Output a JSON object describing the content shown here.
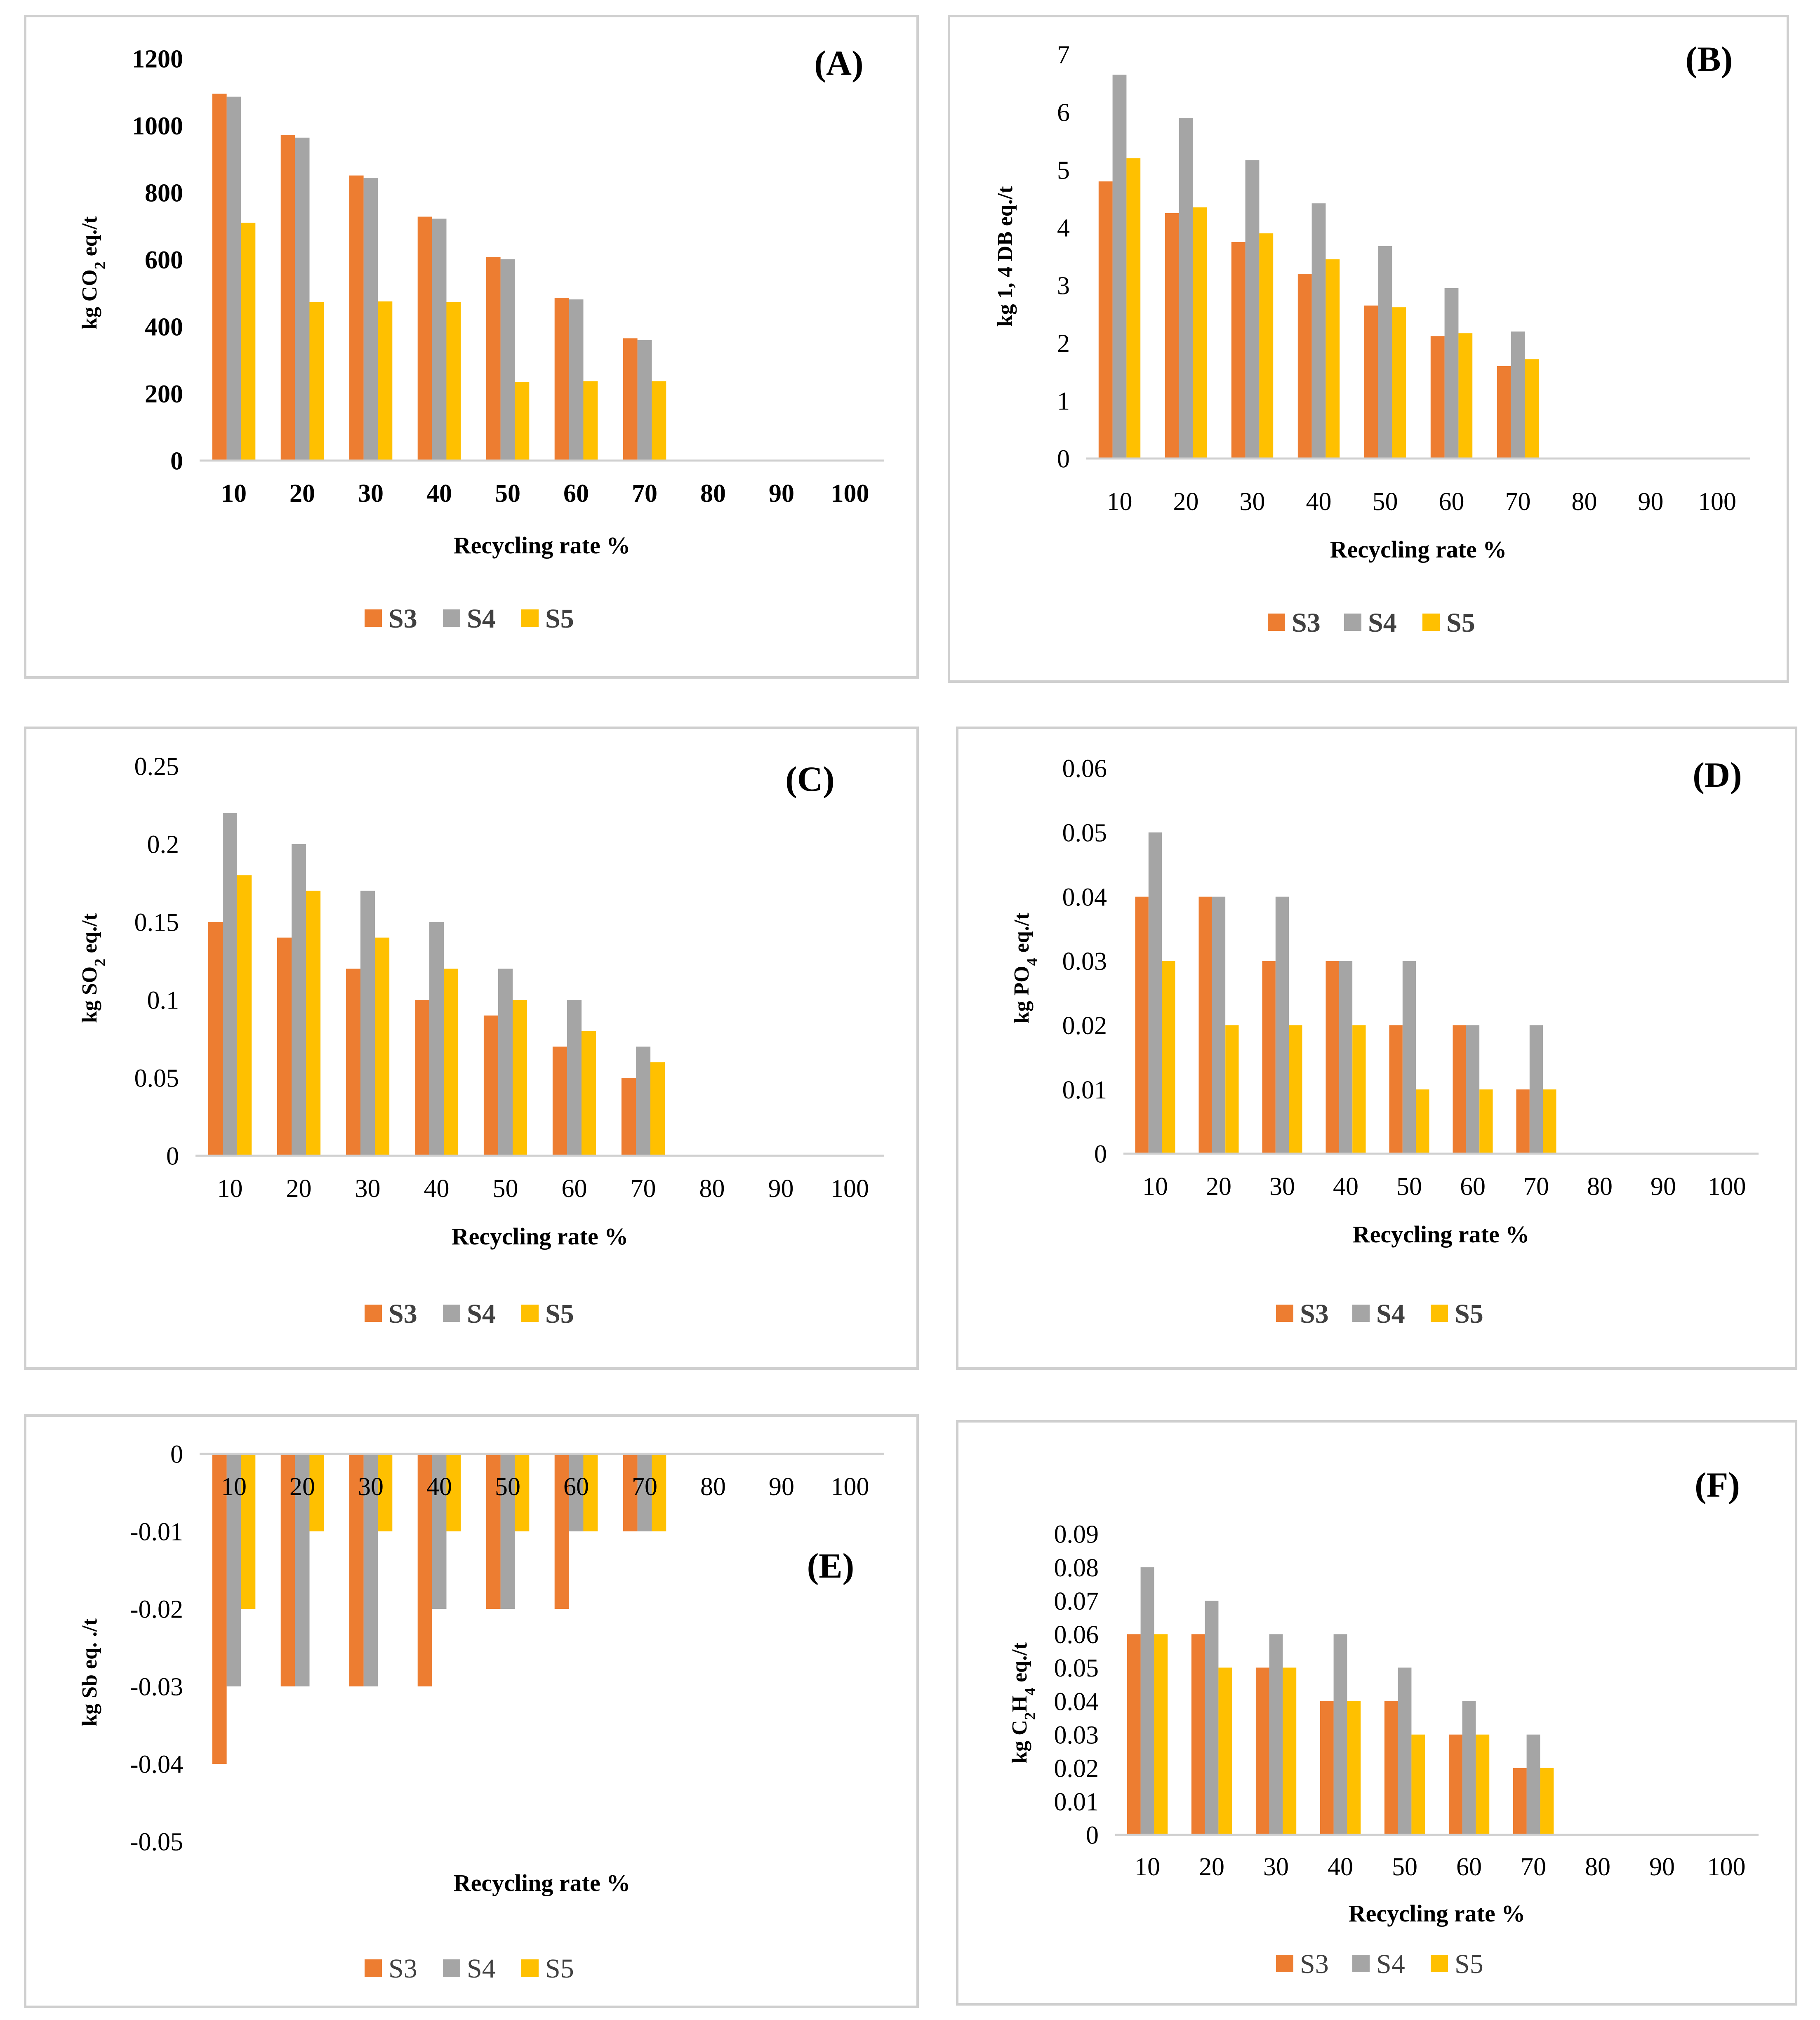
{
  "colors": {
    "S3": "#ED7D31",
    "S4": "#A5A5A5",
    "S5": "#FFC000",
    "axis": "#d0d0d0",
    "text": "#000000"
  },
  "chart_data": [
    {
      "id": "A",
      "type": "bar",
      "title": "(A)",
      "xlabel": "Recycling rate %",
      "ylabel": "kg CO2 eq./t",
      "ylabel_parts": [
        {
          "t": "kg CO"
        },
        {
          "t": "2",
          "sub": true
        },
        {
          "t": " eq./t"
        }
      ],
      "categories": [
        "10",
        "20",
        "30",
        "40",
        "50",
        "60",
        "70",
        "80",
        "90",
        "100"
      ],
      "ylim": [
        0,
        1200
      ],
      "yticks": [
        "0",
        "200",
        "400",
        "600",
        "800",
        "1000",
        "1200"
      ],
      "series": [
        {
          "name": "S3",
          "values": [
            1095,
            972,
            851,
            728,
            607,
            486,
            365,
            0,
            0,
            0
          ]
        },
        {
          "name": "S4",
          "values": [
            1086,
            964,
            843,
            722,
            601,
            481,
            360,
            0,
            0,
            0
          ]
        },
        {
          "name": "S5",
          "values": [
            710,
            473,
            475,
            473,
            235,
            237,
            237,
            0,
            0,
            0
          ]
        }
      ],
      "legend": [
        "S3",
        "S4",
        "S5"
      ],
      "style": {
        "tickBold": true,
        "legendBold": true
      }
    },
    {
      "id": "B",
      "type": "bar",
      "title": "(B)",
      "xlabel": "Recycling rate %",
      "ylabel": "kg 1, 4 DB eq./t",
      "ylabel_parts": [
        {
          "t": "kg 1, 4 DB eq./t"
        }
      ],
      "categories": [
        "10",
        "20",
        "30",
        "40",
        "50",
        "60",
        "70",
        "80",
        "90",
        "100"
      ],
      "ylim": [
        0,
        7
      ],
      "yticks": [
        "0",
        "1",
        "2",
        "3",
        "4",
        "5",
        "6",
        "7"
      ],
      "series": [
        {
          "name": "S3",
          "values": [
            4.8,
            4.25,
            3.75,
            3.2,
            2.65,
            2.12,
            1.6,
            0,
            0,
            0
          ]
        },
        {
          "name": "S4",
          "values": [
            6.65,
            5.9,
            5.17,
            4.42,
            3.68,
            2.95,
            2.2,
            0,
            0,
            0
          ]
        },
        {
          "name": "S5",
          "values": [
            5.2,
            4.35,
            3.9,
            3.45,
            2.62,
            2.17,
            1.72,
            0,
            0,
            0
          ]
        }
      ],
      "legend": [
        "S3",
        "S4",
        "S5"
      ],
      "style": {
        "tickBold": false,
        "legendBold": true
      }
    },
    {
      "id": "C",
      "type": "bar",
      "title": "(C)",
      "xlabel": "Recycling rate %",
      "ylabel": "kg SO2 eq./t",
      "ylabel_parts": [
        {
          "t": "kg SO"
        },
        {
          "t": "2",
          "sub": true
        },
        {
          "t": " eq./t"
        }
      ],
      "categories": [
        "10",
        "20",
        "30",
        "40",
        "50",
        "60",
        "70",
        "80",
        "90",
        "100"
      ],
      "ylim": [
        0,
        0.25
      ],
      "yticks": [
        "0",
        "0.05",
        "0.1",
        "0.15",
        "0.2",
        "0.25"
      ],
      "series": [
        {
          "name": "S3",
          "values": [
            0.15,
            0.14,
            0.12,
            0.1,
            0.09,
            0.07,
            0.05,
            0,
            0,
            0
          ]
        },
        {
          "name": "S4",
          "values": [
            0.22,
            0.2,
            0.17,
            0.15,
            0.12,
            0.1,
            0.07,
            0,
            0,
            0
          ]
        },
        {
          "name": "S5",
          "values": [
            0.18,
            0.17,
            0.14,
            0.12,
            0.1,
            0.08,
            0.06,
            0,
            0,
            0
          ]
        }
      ],
      "legend": [
        "S3",
        "S4",
        "S5"
      ],
      "style": {
        "tickBold": false,
        "legendBold": true
      }
    },
    {
      "id": "D",
      "type": "bar",
      "title": "(D)",
      "xlabel": "Recycling rate %",
      "ylabel": "kg PO4 eq./t",
      "ylabel_parts": [
        {
          "t": "kg PO"
        },
        {
          "t": "4",
          "sub": true
        },
        {
          "t": " eq./t"
        }
      ],
      "categories": [
        "10",
        "20",
        "30",
        "40",
        "50",
        "60",
        "70",
        "80",
        "90",
        "100"
      ],
      "ylim": [
        0,
        0.06
      ],
      "yticks": [
        "0",
        "0.01",
        "0.02",
        "0.03",
        "0.04",
        "0.05",
        "0.06"
      ],
      "series": [
        {
          "name": "S3",
          "values": [
            0.04,
            0.04,
            0.03,
            0.03,
            0.02,
            0.02,
            0.01,
            0,
            0,
            0
          ]
        },
        {
          "name": "S4",
          "values": [
            0.05,
            0.04,
            0.04,
            0.03,
            0.03,
            0.02,
            0.02,
            0,
            0,
            0
          ]
        },
        {
          "name": "S5",
          "values": [
            0.03,
            0.02,
            0.02,
            0.02,
            0.01,
            0.01,
            0.01,
            0,
            0,
            0
          ]
        }
      ],
      "legend": [
        "S3",
        "S4",
        "S5"
      ],
      "style": {
        "tickBold": false,
        "legendBold": true
      }
    },
    {
      "id": "E",
      "type": "bar",
      "title": "(E)",
      "xlabel": "Recycling rate %",
      "ylabel": "kg Sb eq. ./t",
      "ylabel_parts": [
        {
          "t": "kg Sb eq. ./t"
        }
      ],
      "categories": [
        "10",
        "20",
        "30",
        "40",
        "50",
        "60",
        "70",
        "80",
        "90",
        "100"
      ],
      "ylim": [
        -0.05,
        0
      ],
      "yticks": [
        "-0.05",
        "-0.04",
        "-0.03",
        "-0.02",
        "-0.01",
        "0"
      ],
      "series": [
        {
          "name": "S3",
          "values": [
            -0.04,
            -0.03,
            -0.03,
            -0.03,
            -0.02,
            -0.02,
            -0.01,
            0,
            0,
            0
          ]
        },
        {
          "name": "S4",
          "values": [
            -0.03,
            -0.03,
            -0.03,
            -0.02,
            -0.02,
            -0.01,
            -0.01,
            0,
            0,
            0
          ]
        },
        {
          "name": "S5",
          "values": [
            -0.02,
            -0.01,
            -0.01,
            -0.01,
            -0.01,
            -0.01,
            -0.01,
            0,
            0,
            0
          ]
        }
      ],
      "legend": [
        "S3",
        "S4",
        "S5"
      ],
      "style": {
        "tickBold": false,
        "legendBold": false
      }
    },
    {
      "id": "F",
      "type": "bar",
      "title": "(F)",
      "xlabel": "Recycling rate %",
      "ylabel": "kg C2H4 eq./t",
      "ylabel_parts": [
        {
          "t": "kg C"
        },
        {
          "t": "2",
          "sub": true
        },
        {
          "t": "H"
        },
        {
          "t": "4",
          "sub": true
        },
        {
          "t": "  eq./t"
        }
      ],
      "categories": [
        "10",
        "20",
        "30",
        "40",
        "50",
        "60",
        "70",
        "80",
        "90",
        "100"
      ],
      "ylim": [
        0,
        0.09
      ],
      "yticks": [
        "0",
        "0.01",
        "0.02",
        "0.03",
        "0.04",
        "0.05",
        "0.06",
        "0.07",
        "0.08",
        "0.09"
      ],
      "series": [
        {
          "name": "S3",
          "values": [
            0.06,
            0.06,
            0.05,
            0.04,
            0.04,
            0.03,
            0.02,
            0,
            0,
            0
          ]
        },
        {
          "name": "S4",
          "values": [
            0.08,
            0.07,
            0.06,
            0.06,
            0.05,
            0.04,
            0.03,
            0,
            0,
            0
          ]
        },
        {
          "name": "S5",
          "values": [
            0.06,
            0.05,
            0.05,
            0.04,
            0.03,
            0.03,
            0.02,
            0,
            0,
            0
          ]
        }
      ],
      "legend": [
        "S3",
        "S4",
        "S5"
      ],
      "style": {
        "tickBold": false,
        "legendBold": false
      }
    }
  ]
}
